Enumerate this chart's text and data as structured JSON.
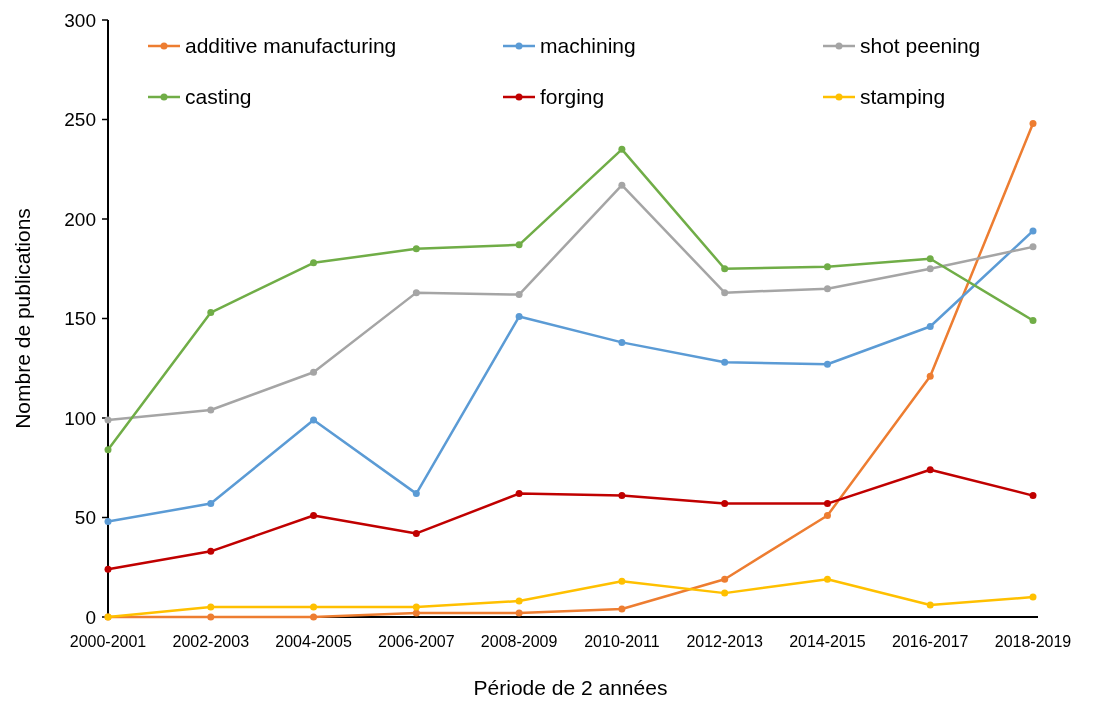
{
  "chart_data": {
    "type": "line",
    "xlabel": "Période de 2 années",
    "ylabel": "Nombre de publications",
    "categories": [
      "2000-2001",
      "2002-2003",
      "2004-2005",
      "2006-2007",
      "2008-2009",
      "2010-2011",
      "2012-2013",
      "2014-2015",
      "2016-2017",
      "2018-2019"
    ],
    "series": [
      {
        "name": "additive manufacturing",
        "color": "#ed7d31",
        "values": [
          0,
          0,
          0,
          2,
          2,
          4,
          19,
          51,
          121,
          248
        ]
      },
      {
        "name": "machining",
        "color": "#5b9bd5",
        "values": [
          48,
          57,
          99,
          62,
          151,
          138,
          128,
          127,
          146,
          194
        ]
      },
      {
        "name": "shot peening",
        "color": "#a5a5a5",
        "values": [
          99,
          104,
          123,
          163,
          162,
          217,
          163,
          165,
          175,
          186
        ]
      },
      {
        "name": "casting",
        "color": "#70ad47",
        "values": [
          84,
          153,
          178,
          185,
          187,
          235,
          175,
          176,
          180,
          149
        ]
      },
      {
        "name": "forging",
        "color": "#c00000",
        "values": [
          24,
          33,
          51,
          42,
          62,
          61,
          57,
          57,
          74,
          61
        ]
      },
      {
        "name": "stamping",
        "color": "#ffc000",
        "values": [
          0,
          5,
          5,
          5,
          8,
          18,
          12,
          19,
          6,
          10
        ]
      }
    ],
    "ylim": [
      0,
      300
    ],
    "yticks": [
      0,
      50,
      100,
      150,
      200,
      250,
      300
    ],
    "grid": false,
    "legend": "top",
    "marker": "circle",
    "line_style": "solid"
  }
}
